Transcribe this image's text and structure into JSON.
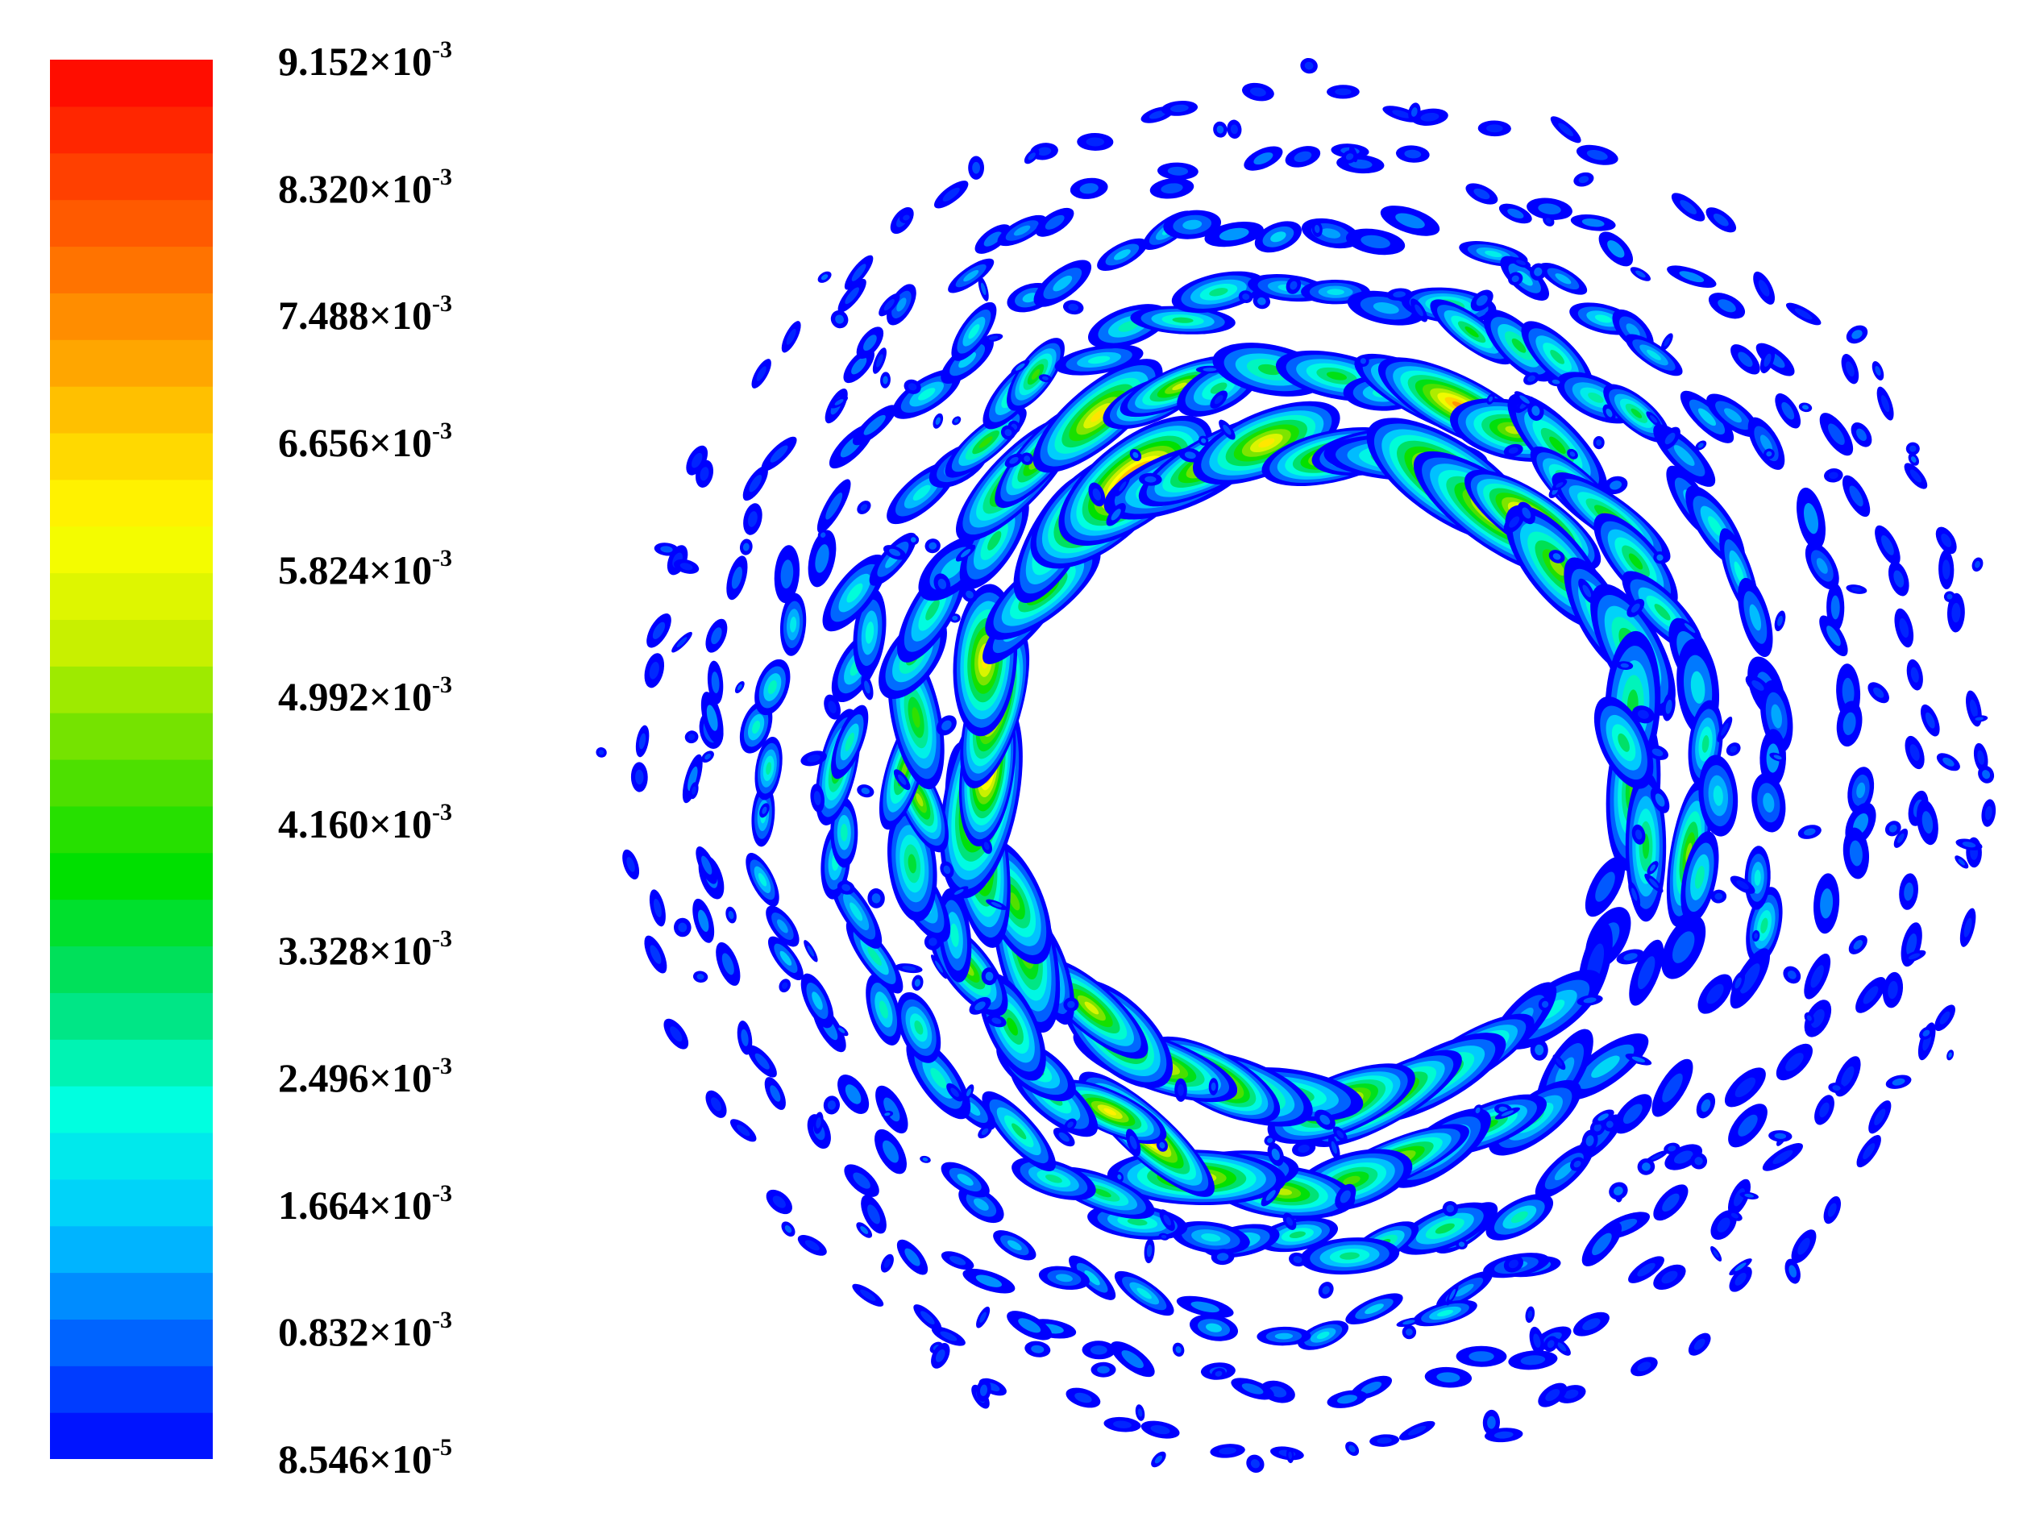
{
  "chart_data": {
    "type": "heatmap",
    "title": "",
    "colormap": [
      "#0000ff",
      "#0064ff",
      "#00c8ff",
      "#00ffe0",
      "#00e070",
      "#00e000",
      "#60e000",
      "#c8f000",
      "#ffff00",
      "#ffc000",
      "#ff8000",
      "#ff4000",
      "#ff0000"
    ],
    "range": [
      8.546e-05,
      0.009152
    ],
    "legend": {
      "placement": "left",
      "levels": 30,
      "ticks": [
        {
          "value": 0.009152,
          "mantissa": "9.152",
          "exp": "-3"
        },
        {
          "value": 0.00832,
          "mantissa": "8.320",
          "exp": "-3"
        },
        {
          "value": 0.007488,
          "mantissa": "7.488",
          "exp": "-3"
        },
        {
          "value": 0.006656,
          "mantissa": "6.656",
          "exp": "-3"
        },
        {
          "value": 0.005824,
          "mantissa": "5.824",
          "exp": "-3"
        },
        {
          "value": 0.004992,
          "mantissa": "4.992",
          "exp": "-3"
        },
        {
          "value": 0.00416,
          "mantissa": "4.160",
          "exp": "-3"
        },
        {
          "value": 0.003328,
          "mantissa": "3.328",
          "exp": "-3"
        },
        {
          "value": 0.002496,
          "mantissa": "2.496",
          "exp": "-3"
        },
        {
          "value": 0.001664,
          "mantissa": "1.664",
          "exp": "-3"
        },
        {
          "value": 0.000832,
          "mantissa": "0.832",
          "exp": "-3"
        },
        {
          "value": 8.546e-05,
          "mantissa": "8.546",
          "exp": "-5"
        }
      ]
    },
    "field": {
      "shape": "annulus",
      "pattern": "interference lobes (speckle) arranged around a ring",
      "peak_value": 0.009152,
      "min_value": 8.546e-05
    }
  }
}
